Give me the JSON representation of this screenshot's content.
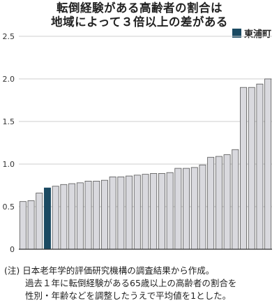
{
  "title": [
    "転倒経験がある高齢者の割合は",
    "地域によって３倍以上の差がある"
  ],
  "legend": {
    "label": "東浦町",
    "color": "#1b4a62"
  },
  "colors": {
    "bar": "#d9d9de",
    "bar_stroke": "#555555",
    "highlight": "#1b4a62",
    "grid": "#cfcfcf"
  },
  "note": {
    "line1": "(注) 日本老年学的評価研究機構の調査結果から作成。",
    "line2": "過去１年に転倒経験がある65歳以上の高齢者の割合を",
    "line3": "性別・年齢などを調整したうえで平均値を1とした。"
  },
  "chart_data": {
    "type": "bar",
    "title": "転倒経験がある高齢者の割合は地域によって３倍以上の差がある",
    "xlabel": "",
    "ylabel": "",
    "ylim": [
      0,
      2.5
    ],
    "yticks": [
      0,
      0.5,
      1.0,
      1.5,
      2.0,
      2.5
    ],
    "ytick_labels": [
      "0",
      "0.5",
      "1.0",
      "1.5",
      "2.0",
      "2.5"
    ],
    "grid": true,
    "highlight_index": 3,
    "highlight_label": "東浦町",
    "values": [
      0.56,
      0.57,
      0.66,
      0.72,
      0.74,
      0.76,
      0.77,
      0.78,
      0.8,
      0.8,
      0.81,
      0.85,
      0.85,
      0.86,
      0.87,
      0.88,
      0.89,
      0.89,
      0.9,
      0.95,
      0.95,
      0.96,
      0.99,
      1.08,
      1.09,
      1.11,
      1.17,
      1.9,
      1.9,
      1.94,
      2.0
    ]
  }
}
